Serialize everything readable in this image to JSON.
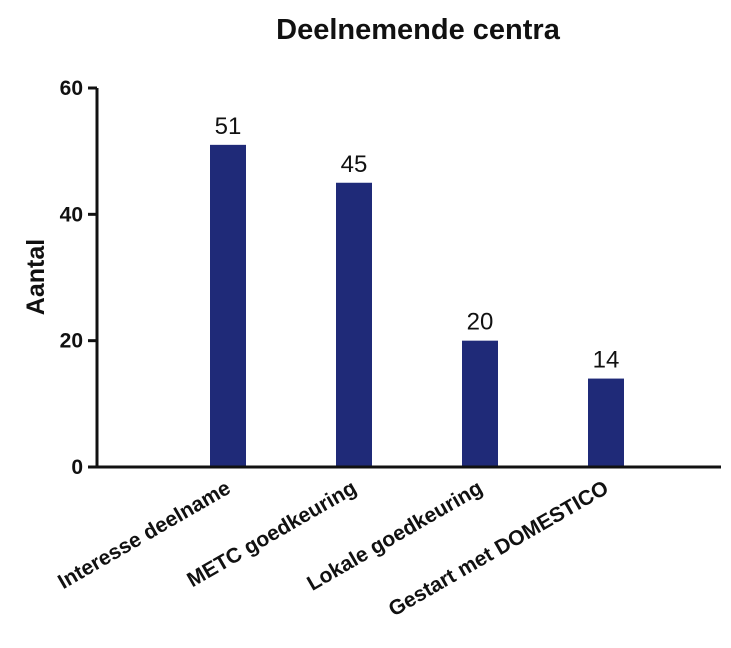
{
  "chart_data": {
    "type": "bar",
    "title": "Deelnemende centra",
    "xlabel": "",
    "ylabel": "Aantal",
    "categories": [
      "Interesse deelname",
      "METC goedkeuring",
      "Lokale goedkeuring",
      "Gestart met DOMESTICO"
    ],
    "values": [
      51,
      45,
      20,
      14
    ],
    "data_labels": [
      "51",
      "45",
      "20",
      "14"
    ],
    "ylim": [
      0,
      60
    ],
    "yticks": [
      0,
      20,
      40,
      60
    ],
    "ytick_labels": [
      "0",
      "20",
      "40",
      "60"
    ],
    "bar_color": "#1f2a78",
    "grid": false,
    "legend": "none"
  }
}
